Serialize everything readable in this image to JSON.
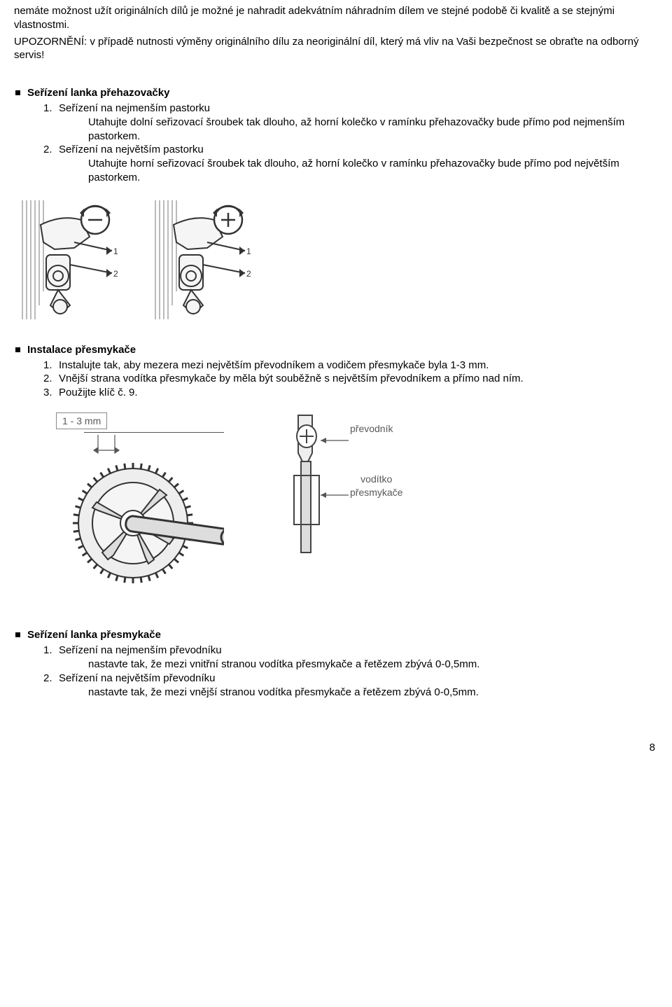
{
  "intro": {
    "p1": "nemáte možnost užít originálních dílů je možné je nahradit adekvátním náhradním dílem ve stejné podobě či kvalitě a se stejnými vlastnostmi.",
    "p2": "UPOZORNĚNÍ: v případě nutnosti výměny originálního dílu za neoriginální díl, který má vliv na Vaši bezpečnost se obraťte na odborný servis!"
  },
  "section1": {
    "heading": "Seřízení lanka přehazovačky",
    "items": [
      {
        "num": "1.",
        "title": "Seřízení na nejmenším pastorku",
        "body": "Utahujte dolní seřizovací šroubek tak dlouho, až horní kolečko v ramínku přehazovačky bude přímo pod nejmenším pastorkem."
      },
      {
        "num": "2.",
        "title": "Seřízení na největším pastorku",
        "body": "Utahujte horní seřizovací šroubek tak dlouho, až horní kolečko v ramínku přehazovačky bude přímo pod největším pastorkem."
      }
    ]
  },
  "section2": {
    "heading": "Instalace přesmykače",
    "items": [
      {
        "num": "1.",
        "body": "Instalujte tak, aby mezera mezi největším převodníkem a vodičem přesmykače byla 1-3 mm."
      },
      {
        "num": "2.",
        "body": "Vnější strana vodítka přesmykače by měla být souběžně s největším převodníkem a přímo nad ním."
      },
      {
        "num": "3.",
        "body": "Použijte klíč č. 9."
      }
    ]
  },
  "fig2": {
    "gap_label": "1 - 3 mm",
    "label1": "převodník",
    "label2": "vodítko",
    "label3": "přesmykače"
  },
  "section3": {
    "heading": "Seřízení lanka přesmykače",
    "items": [
      {
        "num": "1.",
        "title": "Seřízení na nejmenším převodníku",
        "body": "nastavte tak, že mezi vnitřní stranou vodítka přesmykače a řetězem zbývá 0-0,5mm."
      },
      {
        "num": "2.",
        "title": "Seřízení na největším převodníku",
        "body": "nastavte tak, že mezi vnější stranou vodítka přesmykače a řetězem zbývá 0-0,5mm."
      }
    ]
  },
  "page_number": "8"
}
